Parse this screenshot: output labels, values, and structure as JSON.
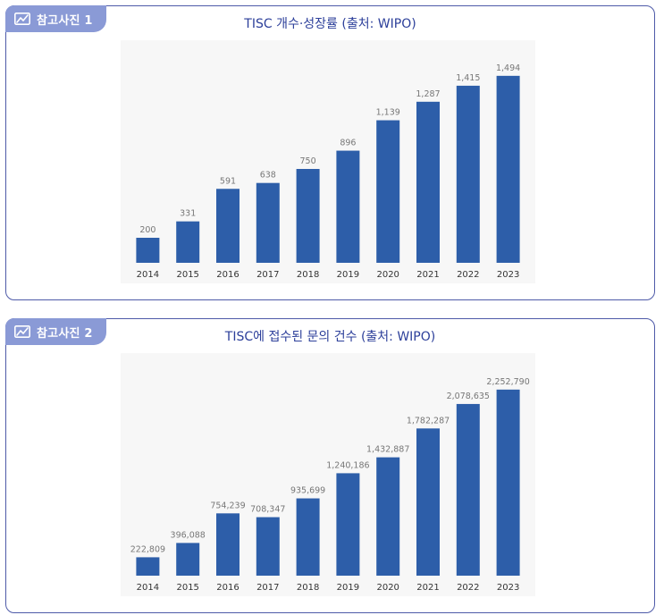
{
  "panels": [
    {
      "tab_label": "참고사진 1",
      "title": "TISC 개수·성장률 (출처: WIPO)"
    },
    {
      "tab_label": "참고사진 2",
      "title": "TISC에 접수된 문의 건수 (출처: WIPO)"
    }
  ],
  "colors": {
    "bar": "#2d5ea9",
    "chart_bg": "#f7f7f7",
    "label": "#777777",
    "tick": "#333333"
  },
  "chart_data": [
    {
      "type": "bar",
      "categories": [
        "2014",
        "2015",
        "2016",
        "2017",
        "2018",
        "2019",
        "2020",
        "2021",
        "2022",
        "2023"
      ],
      "values": [
        200,
        331,
        591,
        638,
        750,
        896,
        1139,
        1287,
        1415,
        1494
      ],
      "value_labels": [
        "200",
        "331",
        "591",
        "638",
        "750",
        "896",
        "1,139",
        "1,287",
        "1,415",
        "1,494"
      ],
      "title": "",
      "xlabel": "",
      "ylabel": "",
      "ylim": [
        0,
        1650
      ],
      "grid": false
    },
    {
      "type": "bar",
      "categories": [
        "2014",
        "2015",
        "2016",
        "2017",
        "2018",
        "2019",
        "2020",
        "2021",
        "2022",
        "2023"
      ],
      "values": [
        222809,
        396088,
        754239,
        708347,
        935699,
        1240186,
        1432887,
        1782287,
        2078635,
        2252790
      ],
      "value_labels": [
        "222,809",
        "396,088",
        "754,239",
        "708,347",
        "935,699",
        "1,240,186",
        "1,432,887",
        "1,782,287",
        "2,078,635",
        "2,252,790"
      ],
      "title": "",
      "xlabel": "",
      "ylabel": "",
      "ylim": [
        0,
        2500000
      ],
      "grid": false
    }
  ]
}
